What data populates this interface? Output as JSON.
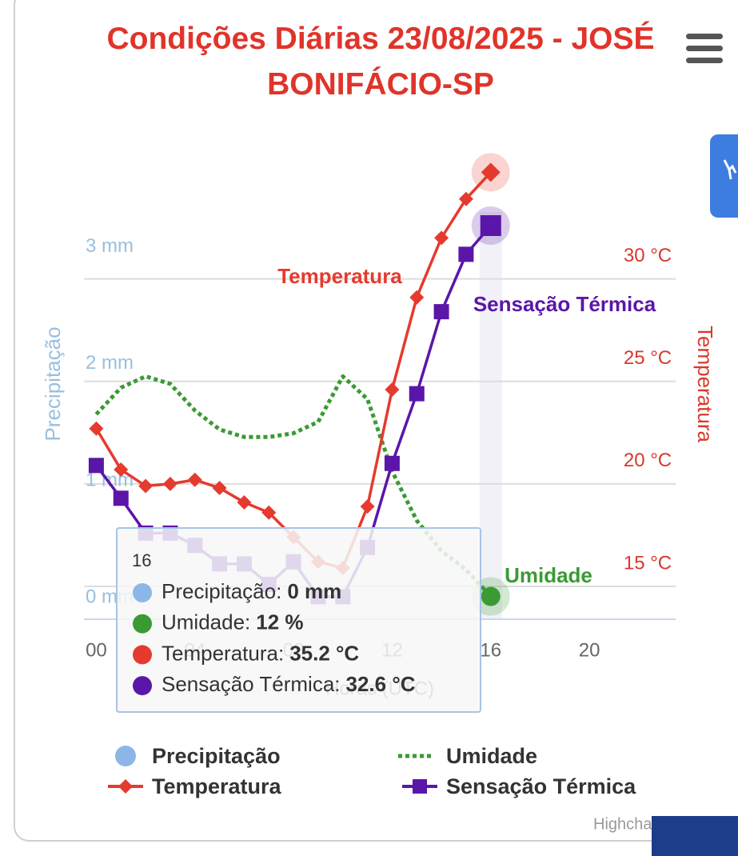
{
  "chart_data": {
    "type": "line",
    "title": "Condições Diárias 23/08/2025 - JOSÉ BONIFÁCIO-SP",
    "x_label": "Horas (UTC)",
    "y_label": "Precipitação",
    "y2_label": "Temperatura",
    "credits": "Highcharts.com",
    "x": [
      0,
      1,
      2,
      3,
      4,
      5,
      6,
      7,
      8,
      9,
      10,
      11,
      12,
      13,
      14,
      15,
      16
    ],
    "xlim": [
      -0.5,
      23.5
    ],
    "xticks": [
      {
        "value": 0,
        "label": "00"
      },
      {
        "value": 4,
        "label": "04"
      },
      {
        "value": 8,
        "label": "08"
      },
      12,
      16,
      20
    ],
    "ylim": [
      0,
      3.93
    ],
    "yticks": [
      {
        "value": 0,
        "label": "0 mm"
      },
      {
        "value": 1,
        "label": "1 mm"
      },
      {
        "value": 2,
        "label": "2 mm"
      },
      {
        "value": 3,
        "label": "3 mm"
      }
    ],
    "y2lim": [
      13.4,
      35.8
    ],
    "y2ticks": [
      {
        "value": 15,
        "label": "15 °C"
      },
      {
        "value": 20,
        "label": "20 °C"
      },
      {
        "value": 25,
        "label": "25 °C"
      },
      {
        "value": 30,
        "label": "30 °C"
      }
    ],
    "y3lim": [
      6,
      127
    ],
    "grid": true,
    "legend": "bottom",
    "series": [
      {
        "name": "Precipitação",
        "color": "#8cb6e8",
        "type": "column",
        "marker": "circle",
        "axis": "y",
        "values": [
          0,
          0,
          0,
          0,
          0,
          0,
          0,
          0,
          0,
          0,
          0,
          0,
          0,
          0,
          0,
          0,
          0
        ]
      },
      {
        "name": "Umidade",
        "color": "#3a9a34",
        "dash": "dot",
        "marker": "none",
        "axis": "y3",
        "values": [
          60,
          67,
          70,
          68,
          61,
          56,
          54,
          54,
          55,
          58,
          70,
          64,
          45,
          32,
          24,
          19,
          12
        ]
      },
      {
        "name": "Temperatura",
        "color": "#e53a2e",
        "marker": "diamond",
        "axis": "y2",
        "values": [
          22.7,
          20.7,
          19.9,
          20.0,
          20.2,
          19.8,
          19.1,
          18.6,
          17.4,
          16.2,
          15.9,
          18.9,
          24.6,
          29.1,
          32.0,
          33.9,
          35.2
        ]
      },
      {
        "name": "Sensação Térmica",
        "color": "#5a16a8",
        "marker": "square",
        "axis": "y2",
        "values": [
          20.9,
          19.3,
          17.6,
          17.6,
          17.0,
          16.1,
          16.1,
          15.1,
          16.2,
          14.5,
          14.5,
          16.9,
          21.0,
          24.4,
          28.4,
          31.2,
          32.6
        ]
      }
    ],
    "tooltip": {
      "rows": [
        {
          "label": "Precipitação:",
          "value": "0 mm"
        },
        {
          "label": "Umidade:",
          "value": "12 %"
        },
        {
          "label": "Temperatura:",
          "value": "35.2 °C"
        },
        {
          "label": "Sensação Térmica:",
          "value": "32.6 °C"
        }
      ]
    }
  }
}
